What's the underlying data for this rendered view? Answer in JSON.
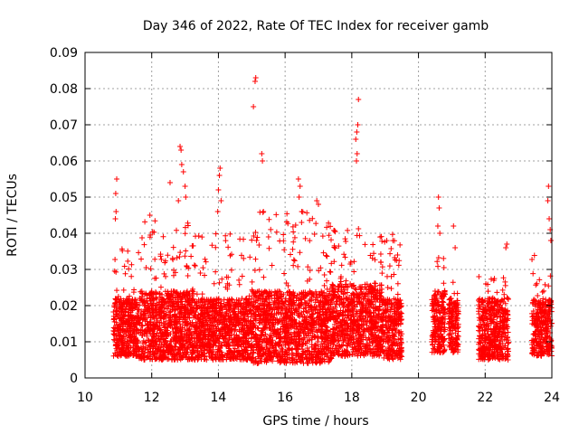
{
  "chart_data": {
    "type": "scatter",
    "title": "Day 346 of 2022, Rate Of TEC Index for receiver gamb",
    "xlabel": "GPS time / hours",
    "ylabel": "ROTI / TECUs",
    "xlim": [
      10,
      24
    ],
    "ylim": [
      0,
      0.09
    ],
    "xticks": [
      "10",
      "12",
      "14",
      "16",
      "18",
      "20",
      "22",
      "24"
    ],
    "yticks": [
      "0",
      "0.01",
      "0.02",
      "0.03",
      "0.04",
      "0.05",
      "0.06",
      "0.07",
      "0.08",
      "0.09"
    ],
    "grid": true,
    "marker": "+",
    "color": "#ff0000",
    "clusters": [
      {
        "x": [
          10.85,
          11.6
        ],
        "y_base": [
          0.006,
          0.022
        ],
        "y_max": 0.036
      },
      {
        "x": [
          11.6,
          13.3
        ],
        "y_base": [
          0.005,
          0.024
        ],
        "y_max": 0.045
      },
      {
        "x": [
          13.3,
          15.0
        ],
        "y_base": [
          0.005,
          0.022
        ],
        "y_max": 0.04
      },
      {
        "x": [
          15.0,
          17.4
        ],
        "y_base": [
          0.004,
          0.024
        ],
        "y_max": 0.046
      },
      {
        "x": [
          17.4,
          18.9
        ],
        "y_base": [
          0.006,
          0.026
        ],
        "y_max": 0.043
      },
      {
        "x": [
          18.9,
          19.5
        ],
        "y_base": [
          0.005,
          0.022
        ],
        "y_max": 0.04
      },
      {
        "x": [
          20.4,
          20.8
        ],
        "y_base": [
          0.007,
          0.024
        ],
        "y_max": 0.035
      },
      {
        "x": [
          20.9,
          21.2
        ],
        "y_base": [
          0.007,
          0.022
        ],
        "y_max": 0.032
      },
      {
        "x": [
          21.8,
          22.7
        ],
        "y_base": [
          0.005,
          0.022
        ],
        "y_max": 0.028
      },
      {
        "x": [
          23.4,
          24.0
        ],
        "y_base": [
          0.006,
          0.022
        ],
        "y_max": 0.034
      }
    ],
    "highlights": [
      {
        "x": 10.95,
        "y": 0.055
      },
      {
        "x": 10.92,
        "y": 0.051
      },
      {
        "x": 10.93,
        "y": 0.046
      },
      {
        "x": 10.91,
        "y": 0.044
      },
      {
        "x": 12.55,
        "y": 0.054
      },
      {
        "x": 12.85,
        "y": 0.064
      },
      {
        "x": 12.88,
        "y": 0.063
      },
      {
        "x": 12.9,
        "y": 0.059
      },
      {
        "x": 12.95,
        "y": 0.057
      },
      {
        "x": 13.0,
        "y": 0.053
      },
      {
        "x": 13.02,
        "y": 0.05
      },
      {
        "x": 12.8,
        "y": 0.049
      },
      {
        "x": 14.05,
        "y": 0.058
      },
      {
        "x": 14.03,
        "y": 0.056
      },
      {
        "x": 14.0,
        "y": 0.052
      },
      {
        "x": 14.08,
        "y": 0.049
      },
      {
        "x": 13.98,
        "y": 0.046
      },
      {
        "x": 15.12,
        "y": 0.083
      },
      {
        "x": 15.1,
        "y": 0.082
      },
      {
        "x": 15.05,
        "y": 0.075
      },
      {
        "x": 15.3,
        "y": 0.062
      },
      {
        "x": 15.32,
        "y": 0.06
      },
      {
        "x": 15.35,
        "y": 0.046
      },
      {
        "x": 16.4,
        "y": 0.055
      },
      {
        "x": 16.45,
        "y": 0.053
      },
      {
        "x": 16.42,
        "y": 0.05
      },
      {
        "x": 16.5,
        "y": 0.046
      },
      {
        "x": 16.95,
        "y": 0.049
      },
      {
        "x": 17.0,
        "y": 0.048
      },
      {
        "x": 18.2,
        "y": 0.077
      },
      {
        "x": 18.18,
        "y": 0.07
      },
      {
        "x": 18.15,
        "y": 0.068
      },
      {
        "x": 18.12,
        "y": 0.066
      },
      {
        "x": 18.16,
        "y": 0.062
      },
      {
        "x": 18.14,
        "y": 0.06
      },
      {
        "x": 20.6,
        "y": 0.05
      },
      {
        "x": 20.62,
        "y": 0.047
      },
      {
        "x": 20.58,
        "y": 0.042
      },
      {
        "x": 20.64,
        "y": 0.04
      },
      {
        "x": 21.05,
        "y": 0.042
      },
      {
        "x": 21.1,
        "y": 0.036
      },
      {
        "x": 22.65,
        "y": 0.037
      },
      {
        "x": 22.62,
        "y": 0.036
      },
      {
        "x": 23.9,
        "y": 0.053
      },
      {
        "x": 23.88,
        "y": 0.049
      },
      {
        "x": 23.92,
        "y": 0.044
      },
      {
        "x": 23.95,
        "y": 0.041
      },
      {
        "x": 23.97,
        "y": 0.038
      }
    ]
  }
}
